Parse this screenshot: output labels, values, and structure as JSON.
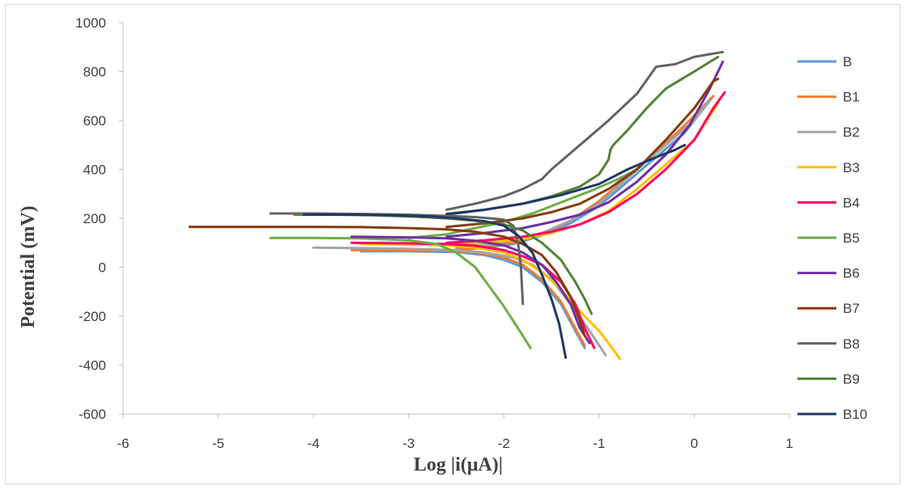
{
  "chart_data": {
    "type": "line",
    "title": "",
    "xlabel": "Log  |i(μA)|",
    "ylabel": "Potential (mV)",
    "xlim": [
      -6,
      1
    ],
    "ylim": [
      -600,
      1000
    ],
    "xticks": [
      -6,
      -5,
      -4,
      -3,
      -2,
      -1,
      0,
      1
    ],
    "yticks": [
      -600,
      -400,
      -200,
      0,
      200,
      400,
      600,
      800,
      1000
    ],
    "grid": false,
    "legend": "right",
    "series": [
      {
        "name": "B",
        "color": "#5B9BD5",
        "points": [
          [
            -3.5,
            65
          ],
          [
            -3.0,
            65
          ],
          [
            -2.5,
            62
          ],
          [
            -2.2,
            50
          ],
          [
            -2.0,
            30
          ],
          [
            -1.8,
            0
          ],
          [
            -1.6,
            -60
          ],
          [
            -1.4,
            -150
          ],
          [
            -1.25,
            -260
          ],
          [
            -1.15,
            -330
          ],
          [
            null,
            null
          ],
          [
            -2.5,
            70
          ],
          [
            -2.2,
            80
          ],
          [
            -1.9,
            95
          ],
          [
            -1.6,
            130
          ],
          [
            -1.3,
            180
          ],
          [
            -1.0,
            250
          ],
          [
            -0.7,
            350
          ],
          [
            -0.4,
            450
          ],
          [
            -0.1,
            550
          ],
          [
            0.1,
            650
          ],
          [
            0.2,
            700
          ]
        ]
      },
      {
        "name": "B1",
        "color": "#ED7D31",
        "points": [
          [
            -3.6,
            70
          ],
          [
            -3.0,
            68
          ],
          [
            -2.5,
            65
          ],
          [
            -2.2,
            55
          ],
          [
            -2.0,
            40
          ],
          [
            -1.8,
            10
          ],
          [
            -1.6,
            -50
          ],
          [
            -1.4,
            -140
          ],
          [
            -1.25,
            -250
          ],
          [
            -1.15,
            -320
          ],
          [
            null,
            null
          ],
          [
            -2.5,
            72
          ],
          [
            -2.2,
            85
          ],
          [
            -1.9,
            100
          ],
          [
            -1.6,
            135
          ],
          [
            -1.3,
            190
          ],
          [
            -1.0,
            270
          ],
          [
            -0.7,
            370
          ],
          [
            -0.4,
            470
          ],
          [
            -0.1,
            580
          ],
          [
            0.1,
            660
          ],
          [
            0.2,
            700
          ]
        ]
      },
      {
        "name": "B2",
        "color": "#A5A5A5",
        "points": [
          [
            -4.0,
            80
          ],
          [
            -3.5,
            78
          ],
          [
            -3.0,
            75
          ],
          [
            -2.5,
            70
          ],
          [
            -2.2,
            60
          ],
          [
            -1.9,
            40
          ],
          [
            -1.7,
            10
          ],
          [
            -1.5,
            -50
          ],
          [
            -1.3,
            -150
          ],
          [
            -1.1,
            -260
          ],
          [
            -0.93,
            -360
          ],
          [
            null,
            null
          ],
          [
            -2.5,
            80
          ],
          [
            -2.2,
            90
          ],
          [
            -1.9,
            110
          ],
          [
            -1.6,
            140
          ],
          [
            -1.3,
            190
          ],
          [
            -1.0,
            260
          ],
          [
            -0.8,
            330
          ],
          [
            -0.6,
            400
          ],
          [
            -0.3,
            500
          ],
          [
            0.0,
            600
          ],
          [
            0.15,
            680
          ]
        ]
      },
      {
        "name": "B3",
        "color": "#FFC000",
        "points": [
          [
            -3.5,
            95
          ],
          [
            -3.0,
            93
          ],
          [
            -2.6,
            90
          ],
          [
            -2.3,
            80
          ],
          [
            -2.0,
            60
          ],
          [
            -1.8,
            30
          ],
          [
            -1.6,
            -20
          ],
          [
            -1.4,
            -90
          ],
          [
            -1.2,
            -180
          ],
          [
            -1.0,
            -260
          ],
          [
            -0.9,
            -310
          ],
          [
            -0.78,
            -375
          ],
          [
            null,
            null
          ],
          [
            -2.6,
            92
          ],
          [
            -2.2,
            100
          ],
          [
            -1.8,
            115
          ],
          [
            -1.5,
            140
          ],
          [
            -1.2,
            175
          ],
          [
            -0.9,
            230
          ],
          [
            -0.6,
            320
          ],
          [
            -0.3,
            420
          ],
          [
            0.0,
            520
          ],
          [
            0.25,
            670
          ]
        ]
      },
      {
        "name": "B4",
        "color": "#FF0066",
        "points": [
          [
            -3.6,
            100
          ],
          [
            -3.0,
            98
          ],
          [
            -2.6,
            95
          ],
          [
            -2.3,
            88
          ],
          [
            -2.0,
            70
          ],
          [
            -1.8,
            45
          ],
          [
            -1.6,
            10
          ],
          [
            -1.4,
            -60
          ],
          [
            -1.25,
            -150
          ],
          [
            -1.15,
            -250
          ],
          [
            -1.05,
            -330
          ],
          [
            null,
            null
          ],
          [
            -2.6,
            100
          ],
          [
            -2.2,
            110
          ],
          [
            -1.8,
            125
          ],
          [
            -1.5,
            145
          ],
          [
            -1.2,
            175
          ],
          [
            -0.9,
            225
          ],
          [
            -0.6,
            300
          ],
          [
            -0.3,
            400
          ],
          [
            0.0,
            520
          ],
          [
            0.2,
            650
          ],
          [
            0.32,
            715
          ]
        ]
      },
      {
        "name": "B5",
        "color": "#70AD47",
        "points": [
          [
            -4.45,
            120
          ],
          [
            -4.0,
            120
          ],
          [
            -3.5,
            118
          ],
          [
            -3.0,
            110
          ],
          [
            -2.7,
            95
          ],
          [
            -2.5,
            60
          ],
          [
            -2.3,
            0
          ],
          [
            -2.15,
            -80
          ],
          [
            -2.0,
            -160
          ],
          [
            -1.85,
            -250
          ],
          [
            -1.72,
            -330
          ],
          [
            null,
            null
          ],
          [
            -3.0,
            120
          ],
          [
            -2.6,
            135
          ],
          [
            -2.3,
            160
          ],
          [
            -2.0,
            185
          ],
          [
            -1.7,
            220
          ],
          [
            -1.4,
            265
          ],
          [
            -1.1,
            310
          ],
          [
            -0.8,
            360
          ],
          [
            -0.6,
            400
          ]
        ]
      },
      {
        "name": "B6",
        "color": "#7030A0",
        "points": [
          [
            -3.6,
            125
          ],
          [
            -3.0,
            122
          ],
          [
            -2.6,
            118
          ],
          [
            -2.3,
            108
          ],
          [
            -2.0,
            90
          ],
          [
            -1.8,
            60
          ],
          [
            -1.6,
            10
          ],
          [
            -1.45,
            -60
          ],
          [
            -1.3,
            -150
          ],
          [
            -1.2,
            -250
          ],
          [
            -1.1,
            -310
          ],
          [
            null,
            null
          ],
          [
            -2.6,
            125
          ],
          [
            -2.2,
            140
          ],
          [
            -1.8,
            160
          ],
          [
            -1.5,
            185
          ],
          [
            -1.2,
            215
          ],
          [
            -0.9,
            265
          ],
          [
            -0.6,
            350
          ],
          [
            -0.3,
            460
          ],
          [
            -0.05,
            580
          ],
          [
            0.15,
            720
          ],
          [
            0.3,
            840
          ]
        ]
      },
      {
        "name": "B7",
        "color": "#843C0C",
        "points": [
          [
            -5.3,
            165
          ],
          [
            -4.5,
            165
          ],
          [
            -4.0,
            165
          ],
          [
            -3.5,
            164
          ],
          [
            -3.0,
            160
          ],
          [
            -2.6,
            155
          ],
          [
            -2.3,
            145
          ],
          [
            -2.0,
            125
          ],
          [
            -1.8,
            95
          ],
          [
            -1.6,
            50
          ],
          [
            -1.45,
            -20
          ],
          [
            -1.3,
            -120
          ],
          [
            -1.2,
            -220
          ],
          [
            -1.15,
            -280
          ],
          [
            null,
            null
          ],
          [
            -2.6,
            165
          ],
          [
            -2.2,
            180
          ],
          [
            -1.8,
            200
          ],
          [
            -1.5,
            225
          ],
          [
            -1.2,
            260
          ],
          [
            -0.9,
            320
          ],
          [
            -0.6,
            400
          ],
          [
            -0.3,
            520
          ],
          [
            0.0,
            650
          ],
          [
            0.2,
            760
          ],
          [
            0.25,
            770
          ]
        ]
      },
      {
        "name": "B8",
        "color": "#636363",
        "points": [
          [
            -4.45,
            220
          ],
          [
            -4.0,
            220
          ],
          [
            -3.5,
            218
          ],
          [
            -3.0,
            215
          ],
          [
            -2.6,
            210
          ],
          [
            -2.3,
            205
          ],
          [
            -2.0,
            195
          ],
          [
            -1.9,
            170
          ],
          [
            -1.85,
            100
          ],
          [
            -1.82,
            0
          ],
          [
            -1.8,
            -150
          ],
          [
            null,
            null
          ],
          [
            -2.6,
            235
          ],
          [
            -2.3,
            260
          ],
          [
            -2.0,
            290
          ],
          [
            -1.8,
            320
          ],
          [
            -1.6,
            360
          ],
          [
            -1.5,
            400
          ],
          [
            -1.2,
            500
          ],
          [
            -0.9,
            600
          ],
          [
            -0.6,
            710
          ],
          [
            -0.4,
            820
          ],
          [
            -0.2,
            830
          ],
          [
            0.0,
            860
          ],
          [
            0.3,
            880
          ]
        ]
      },
      {
        "name": "B9",
        "color": "#548235",
        "points": [
          [
            -4.2,
            215
          ],
          [
            -3.8,
            215
          ],
          [
            -3.4,
            213
          ],
          [
            -3.0,
            208
          ],
          [
            -2.6,
            200
          ],
          [
            -2.3,
            190
          ],
          [
            -2.0,
            175
          ],
          [
            -1.8,
            150
          ],
          [
            -1.6,
            100
          ],
          [
            -1.4,
            30
          ],
          [
            -1.25,
            -60
          ],
          [
            -1.15,
            -130
          ],
          [
            -1.08,
            -190
          ],
          [
            null,
            null
          ],
          [
            -2.6,
            215
          ],
          [
            -2.2,
            235
          ],
          [
            -1.8,
            260
          ],
          [
            -1.5,
            290
          ],
          [
            -1.2,
            330
          ],
          [
            -1.0,
            380
          ],
          [
            -0.9,
            440
          ],
          [
            -0.88,
            480
          ],
          [
            -0.85,
            500
          ],
          [
            -0.7,
            560
          ],
          [
            -0.5,
            650
          ],
          [
            -0.3,
            730
          ],
          [
            0.0,
            800
          ],
          [
            0.25,
            860
          ]
        ]
      },
      {
        "name": "B10",
        "color": "#203864",
        "points": [
          [
            -4.1,
            215
          ],
          [
            -3.6,
            215
          ],
          [
            -3.2,
            213
          ],
          [
            -2.8,
            208
          ],
          [
            -2.5,
            200
          ],
          [
            -2.2,
            188
          ],
          [
            -2.0,
            170
          ],
          [
            -1.85,
            130
          ],
          [
            -1.7,
            60
          ],
          [
            -1.6,
            -30
          ],
          [
            -1.5,
            -130
          ],
          [
            -1.42,
            -230
          ],
          [
            -1.35,
            -370
          ],
          [
            null,
            null
          ],
          [
            -2.6,
            218
          ],
          [
            -2.2,
            235
          ],
          [
            -1.8,
            260
          ],
          [
            -1.4,
            295
          ],
          [
            -1.0,
            340
          ],
          [
            -0.7,
            400
          ],
          [
            -0.4,
            450
          ],
          [
            -0.2,
            480
          ],
          [
            -0.1,
            500
          ]
        ]
      }
    ]
  }
}
